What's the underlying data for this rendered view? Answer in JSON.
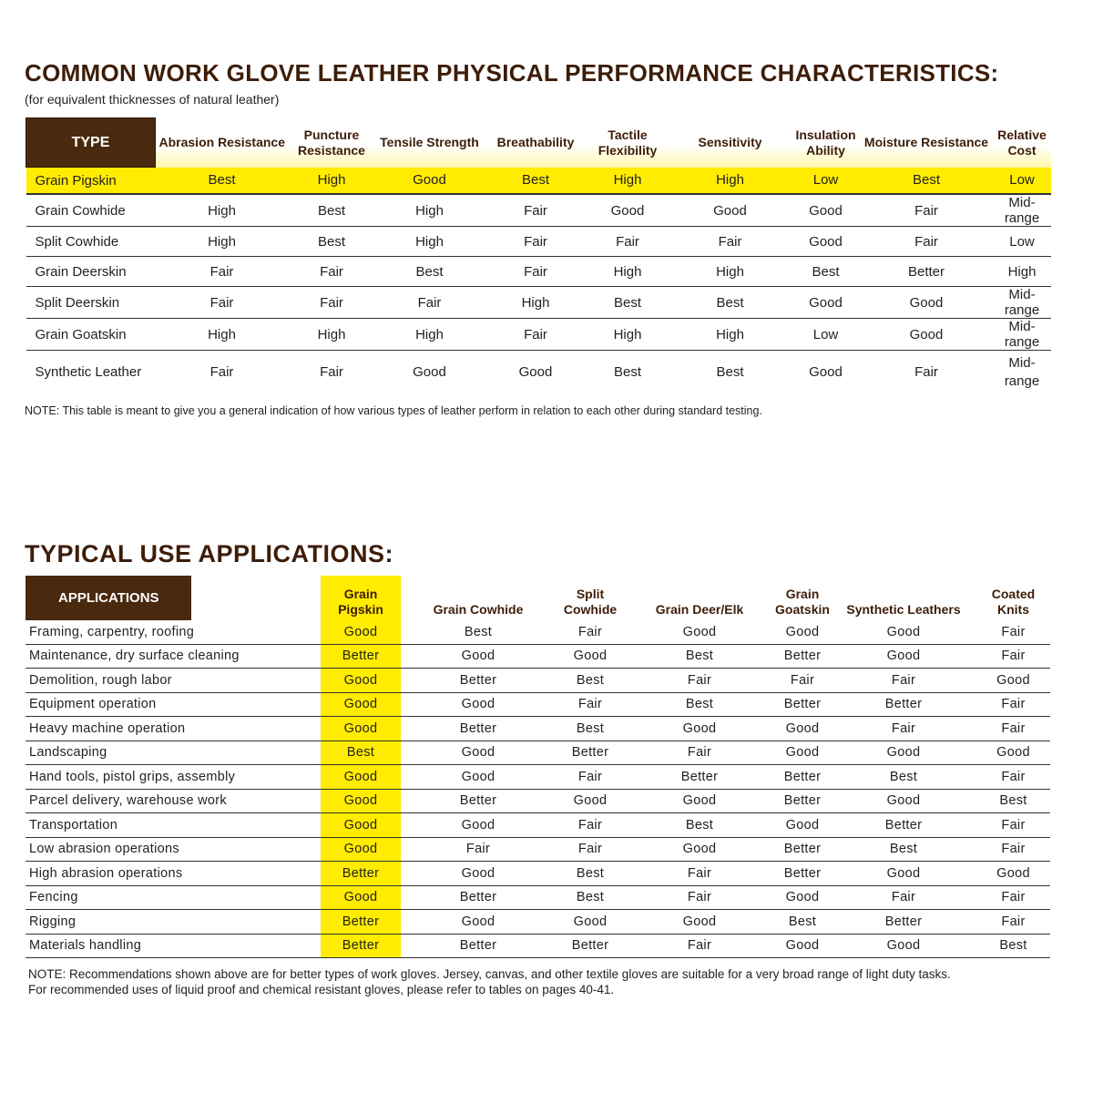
{
  "performance": {
    "title": "COMMON WORK GLOVE LEATHER PHYSICAL PERFORMANCE CHARACTERISTICS:",
    "subtitle": "(for equivalent thicknesses of natural leather)",
    "headers": [
      "TYPE",
      "Abrasion Resistance",
      "Puncture Resistance",
      "Tensile Strength",
      "Breathability",
      "Tactile Flexibility",
      "Sensitivity",
      "Insulation Ability",
      "Moisture Resistance",
      "Relative Cost"
    ],
    "highlight_row": "Grain Pigskin",
    "rows": [
      [
        "Grain Pigskin",
        "Best",
        "High",
        "Good",
        "Best",
        "High",
        "High",
        "Low",
        "Best",
        "Low"
      ],
      [
        "Grain Cowhide",
        "High",
        "Best",
        "High",
        "Fair",
        "Good",
        "Good",
        "Good",
        "Fair",
        "Mid-range"
      ],
      [
        "Split Cowhide",
        "High",
        "Best",
        "High",
        "Fair",
        "Fair",
        "Fair",
        "Good",
        "Fair",
        "Low"
      ],
      [
        "Grain Deerskin",
        "Fair",
        "Fair",
        "Best",
        "Fair",
        "High",
        "High",
        "Best",
        "Better",
        "High"
      ],
      [
        "Split Deerskin",
        "Fair",
        "Fair",
        "Fair",
        "High",
        "Best",
        "Best",
        "Good",
        "Good",
        "Mid-range"
      ],
      [
        "Grain Goatskin",
        "High",
        "High",
        "High",
        "Fair",
        "High",
        "High",
        "Low",
        "Good",
        "Mid-range"
      ],
      [
        "Synthetic Leather",
        "Fair",
        "Fair",
        "Good",
        "Good",
        "Best",
        "Best",
        "Good",
        "Fair",
        "Mid-range"
      ]
    ],
    "note": "NOTE: This table is meant to give you a general indication of how various types of leather perform in relation to each other during standard testing."
  },
  "applications": {
    "title": "TYPICAL USE APPLICATIONS:",
    "headers": [
      "APPLICATIONS",
      "Grain Pigskin",
      "Grain Cowhide",
      "Split Cowhide",
      "Grain Deer/Elk",
      "Grain Goatskin",
      "Synthetic Leathers",
      "Coated Knits"
    ],
    "highlight_column": "Grain Pigskin",
    "rows": [
      [
        "Framing, carpentry, roofing",
        "Good",
        "Best",
        "Fair",
        "Good",
        "Good",
        "Good",
        "Fair"
      ],
      [
        "Maintenance, dry surface cleaning",
        "Better",
        "Good",
        "Good",
        "Best",
        "Better",
        "Good",
        "Fair"
      ],
      [
        "Demolition, rough labor",
        "Good",
        "Better",
        "Best",
        "Fair",
        "Fair",
        "Fair",
        "Good"
      ],
      [
        "Equipment operation",
        "Good",
        "Good",
        "Fair",
        "Best",
        "Better",
        "Better",
        "Fair"
      ],
      [
        "Heavy machine operation",
        "Good",
        "Better",
        "Best",
        "Good",
        "Good",
        "Fair",
        "Fair"
      ],
      [
        "Landscaping",
        "Best",
        "Good",
        "Better",
        "Fair",
        "Good",
        "Good",
        "Good"
      ],
      [
        "Hand tools, pistol grips, assembly",
        "Good",
        "Good",
        "Fair",
        "Better",
        "Better",
        "Best",
        "Fair"
      ],
      [
        "Parcel delivery, warehouse work",
        "Good",
        "Better",
        "Good",
        "Good",
        "Better",
        "Good",
        "Best"
      ],
      [
        "Transportation",
        "Good",
        "Good",
        "Fair",
        "Best",
        "Good",
        "Better",
        "Fair"
      ],
      [
        "Low abrasion operations",
        "Good",
        "Fair",
        "Fair",
        "Good",
        "Better",
        "Best",
        "Fair"
      ],
      [
        "High abrasion operations",
        "Better",
        "Good",
        "Best",
        "Fair",
        "Better",
        "Good",
        "Good"
      ],
      [
        "Fencing",
        "Good",
        "Better",
        "Best",
        "Fair",
        "Good",
        "Fair",
        "Fair"
      ],
      [
        "Rigging",
        "Better",
        "Good",
        "Good",
        "Good",
        "Best",
        "Better",
        "Fair"
      ],
      [
        "Materials handling",
        "Better",
        "Better",
        "Better",
        "Fair",
        "Good",
        "Good",
        "Best"
      ]
    ],
    "note_lines": [
      "NOTE: Recommendations shown above are for better types of work gloves. Jersey, canvas, and other textile gloves are suitable for a very broad range of light duty tasks.",
      "For recommended uses of liquid proof and chemical resistant gloves, please refer to tables on pages 40-41."
    ]
  },
  "colors": {
    "brown": "#4a2a0e",
    "title": "#3d1d08",
    "highlight": "#ffec00"
  }
}
